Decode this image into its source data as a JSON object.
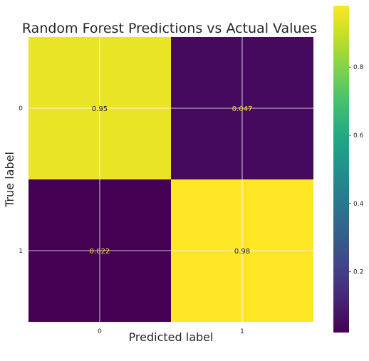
{
  "chart_data": {
    "type": "heatmap",
    "title": "Random Forest Predictions vs Actual Values",
    "xlabel": "Predicted label",
    "ylabel": "True label",
    "x_categories": [
      "0",
      "1"
    ],
    "y_categories": [
      "0",
      "1"
    ],
    "values": [
      [
        0.95,
        0.047
      ],
      [
        0.022,
        0.98
      ]
    ],
    "cell_labels": [
      [
        "0.95",
        "0.047"
      ],
      [
        "0.022",
        "0.98"
      ]
    ],
    "colormap": "viridis",
    "grid": true,
    "colorbar": {
      "range": [
        0.022,
        0.98
      ],
      "ticks": [
        0.2,
        0.4,
        0.6,
        0.8
      ],
      "tick_labels": [
        "0.2",
        "0.4",
        "0.6",
        "0.8"
      ]
    },
    "colors": {
      "high": "#f4e41c",
      "low": "#450b57",
      "text_on_high": "#222222",
      "text_on_low": "#f4e41c"
    }
  }
}
